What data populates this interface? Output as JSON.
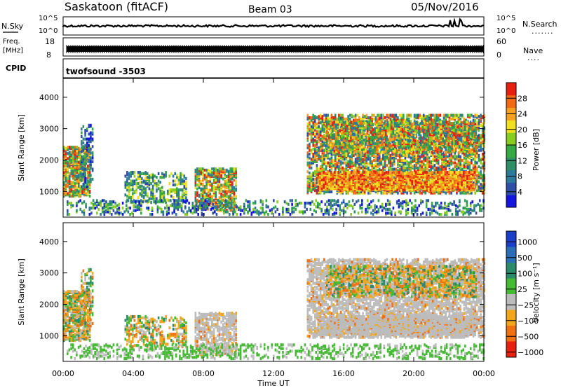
{
  "header": {
    "station": "Saskatoon (fitACF)",
    "beam": "Beam 03",
    "date": "05/Nov/2016"
  },
  "strip": {
    "left_top": "N.Sky",
    "left_freq_line1": "Freq.",
    "left_freq_line2": "[MHz]",
    "left_cpid": "CPID",
    "right_top": "N.Search",
    "right_top_dots": ".......",
    "right_mid": "Nave",
    "right_mid_dots": "....",
    "nsky_ticks": [
      "10^5",
      "10^0"
    ],
    "nsearch_ticks": [
      "10^5",
      "10^0"
    ],
    "freq_ticks": [
      "18",
      "8"
    ],
    "nave_ticks": [
      "60",
      "0"
    ],
    "cpid_label": "twofsound -3503"
  },
  "chart_data": [
    {
      "type": "heatmap",
      "name": "power",
      "ylabel": "Slant Range [km]",
      "yticks": [
        "1000",
        "2000",
        "3000",
        "4000"
      ],
      "ylim": [
        180,
        4600
      ],
      "xlim_hours": [
        0,
        24
      ],
      "colorbar_label": "Power [dB]",
      "colorbar_ticks": [
        "4",
        "8",
        "12",
        "16",
        "20",
        "24",
        "28"
      ],
      "colorbar_colors": [
        "#1515e0",
        "#2f4fa8",
        "#2e7a9a",
        "#2f8f66",
        "#33aa44",
        "#88cc22",
        "#f0e020",
        "#f5a020",
        "#f06a14",
        "#e82010"
      ]
    },
    {
      "type": "heatmap",
      "name": "velocity",
      "ylabel": "Slant Range [km]",
      "yticks": [
        "1000",
        "2000",
        "3000",
        "4000"
      ],
      "ylim": [
        180,
        4600
      ],
      "xlim_hours": [
        0,
        24
      ],
      "colorbar_label": "Velocity [m s⁻¹]",
      "colorbar_ticks": [
        "1000",
        "500",
        "100",
        "25",
        "−25",
        "−100",
        "−500",
        "−1000"
      ],
      "colorbar_colors": [
        "#1a3ec8",
        "#2a6eb8",
        "#2a8a6a",
        "#44bb33",
        "#bcbcbc",
        "#f2a61c",
        "#f07014",
        "#e82010"
      ]
    }
  ],
  "xaxis": {
    "ticks": [
      "00:00",
      "04:00",
      "08:00",
      "12:00",
      "16:00",
      "20:00",
      "00:00"
    ],
    "label": "Time UT"
  },
  "colors": {
    "frame": "#000000",
    "velocity_ground": "#bcbcbc"
  }
}
